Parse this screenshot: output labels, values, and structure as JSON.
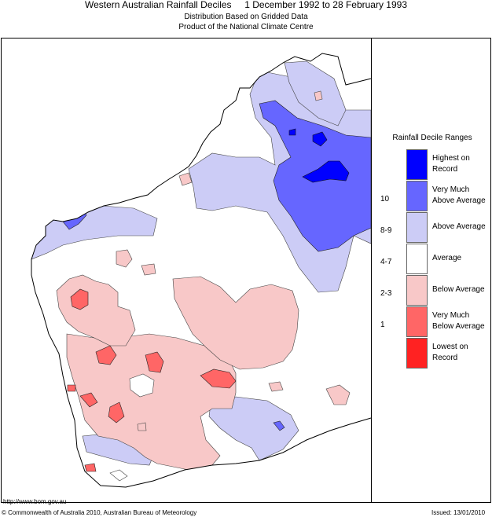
{
  "header": {
    "title_main": "Western Australian Rainfall Deciles",
    "title_period": "1 December 1992 to 28 February 1993",
    "subtitle_1": "Distribution Based on Gridded Data",
    "subtitle_2": "Product of the National Climate Centre"
  },
  "legend": {
    "title": "Rainfall Decile Ranges",
    "items": [
      {
        "label_1": "Highest on",
        "label_2": "Record",
        "range": "",
        "color": "#0000ff"
      },
      {
        "label_1": "Very Much",
        "label_2": "Above Average",
        "range": "10",
        "color": "#6666ff"
      },
      {
        "label_1": "Above Average",
        "label_2": "",
        "range": "8-9",
        "color": "#ccccf6"
      },
      {
        "label_1": "Average",
        "label_2": "",
        "range": "4-7",
        "color": "#ffffff"
      },
      {
        "label_1": "Below Average",
        "label_2": "",
        "range": "2-3",
        "color": "#f8c8c8"
      },
      {
        "label_1": "Very Much",
        "label_2": "Below Average",
        "range": "1",
        "color": "#ff6666"
      },
      {
        "label_1": "Lowest on",
        "label_2": "Record",
        "range": "",
        "color": "#ff2222"
      }
    ]
  },
  "footer": {
    "url": "http://www.bom.gov.au",
    "copyright": "© Commonwealth of Australia 2010, Australian Bureau of Meteorology",
    "issued": "Issued: 13/01/2010"
  }
}
